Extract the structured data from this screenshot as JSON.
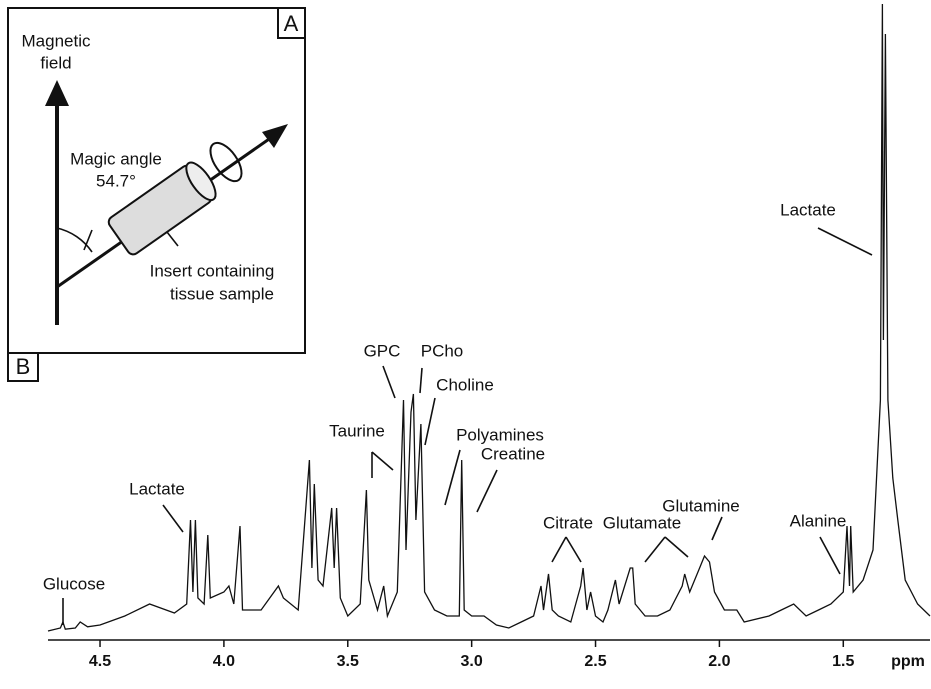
{
  "chart_data": {
    "type": "line",
    "x_label": "ppm",
    "xlim": [
      4.71,
      1.15
    ],
    "ylim": [
      0,
      106
    ],
    "xticks": [
      4.5,
      {
        "value": 4.0,
        "label": "4.0"
      },
      3.5,
      {
        "value": 3.0,
        "label": "3.0"
      },
      2.5,
      {
        "value": 2.0,
        "label": "2.0"
      },
      1.5
    ],
    "color": "#111111",
    "x": [
      4.71,
      4.66,
      4.65,
      4.64,
      4.6,
      4.58,
      4.55,
      4.5,
      4.4,
      4.3,
      4.2,
      4.15,
      4.135,
      4.125,
      4.115,
      4.105,
      4.08,
      4.065,
      4.055,
      4.0,
      3.98,
      3.96,
      3.935,
      3.925,
      3.85,
      3.78,
      3.76,
      3.7,
      3.655,
      3.645,
      3.635,
      3.62,
      3.6,
      3.565,
      3.555,
      3.545,
      3.53,
      3.5,
      3.45,
      3.425,
      3.415,
      3.38,
      3.355,
      3.34,
      3.3,
      3.275,
      3.265,
      3.245,
      3.235,
      3.225,
      3.205,
      3.19,
      3.15,
      3.1,
      3.05,
      3.04,
      3.03,
      3.0,
      2.95,
      2.9,
      2.85,
      2.8,
      2.75,
      2.72,
      2.71,
      2.69,
      2.675,
      2.65,
      2.6,
      2.56,
      2.55,
      2.535,
      2.52,
      2.5,
      2.47,
      2.45,
      2.42,
      2.405,
      2.36,
      2.35,
      2.34,
      2.3,
      2.25,
      2.2,
      2.15,
      2.14,
      2.12,
      2.08,
      2.06,
      2.04,
      2.02,
      1.98,
      1.93,
      1.9,
      1.8,
      1.75,
      1.7,
      1.65,
      1.6,
      1.55,
      1.5,
      1.485,
      1.475,
      1.47,
      1.46,
      1.42,
      1.38,
      1.35,
      1.342,
      1.338,
      1.33,
      1.32,
      1.3,
      1.28,
      1.25,
      1.2,
      1.15
    ],
    "values": [
      1.5,
      2,
      3,
      1.8,
      2,
      3,
      2.2,
      2.5,
      4,
      6,
      4.5,
      6,
      20,
      8,
      20,
      7,
      6,
      17.5,
      7,
      8,
      9,
      6,
      19,
      5,
      5,
      9,
      7,
      5,
      30,
      12,
      26,
      10,
      9,
      22,
      12,
      22,
      7,
      4,
      6,
      25,
      10,
      5,
      9,
      4,
      8,
      40,
      15,
      38,
      41,
      20,
      36,
      8,
      5,
      4,
      4,
      30,
      5,
      4,
      4,
      2.5,
      2,
      3,
      4,
      9,
      5,
      11,
      5,
      4,
      3,
      9,
      12,
      5,
      8,
      4,
      3,
      5,
      10,
      6,
      12,
      12,
      6,
      4,
      4,
      5,
      9,
      11,
      8,
      12,
      14,
      13,
      8,
      5,
      5,
      3,
      4,
      5,
      6,
      4,
      5,
      6,
      8,
      19,
      9,
      19,
      8,
      10,
      15,
      40,
      106,
      50,
      101,
      40,
      27,
      20,
      10,
      6,
      4
    ],
    "annotations": [
      "Glucose",
      "Lactate",
      "Taurine",
      "GPC",
      "PCho",
      "Choline",
      "Polyamines",
      "Creatine",
      "Citrate",
      "Glutamate",
      "Glutamine",
      "Alanine",
      "Lactate"
    ]
  },
  "inset": {
    "field_label": [
      "Magnetic",
      "field"
    ],
    "angle_label": [
      "Magic angle",
      "54.7°"
    ],
    "insert_label": [
      "Insert containing",
      "tissue sample"
    ],
    "panel_a": "A",
    "panel_b": "B"
  }
}
